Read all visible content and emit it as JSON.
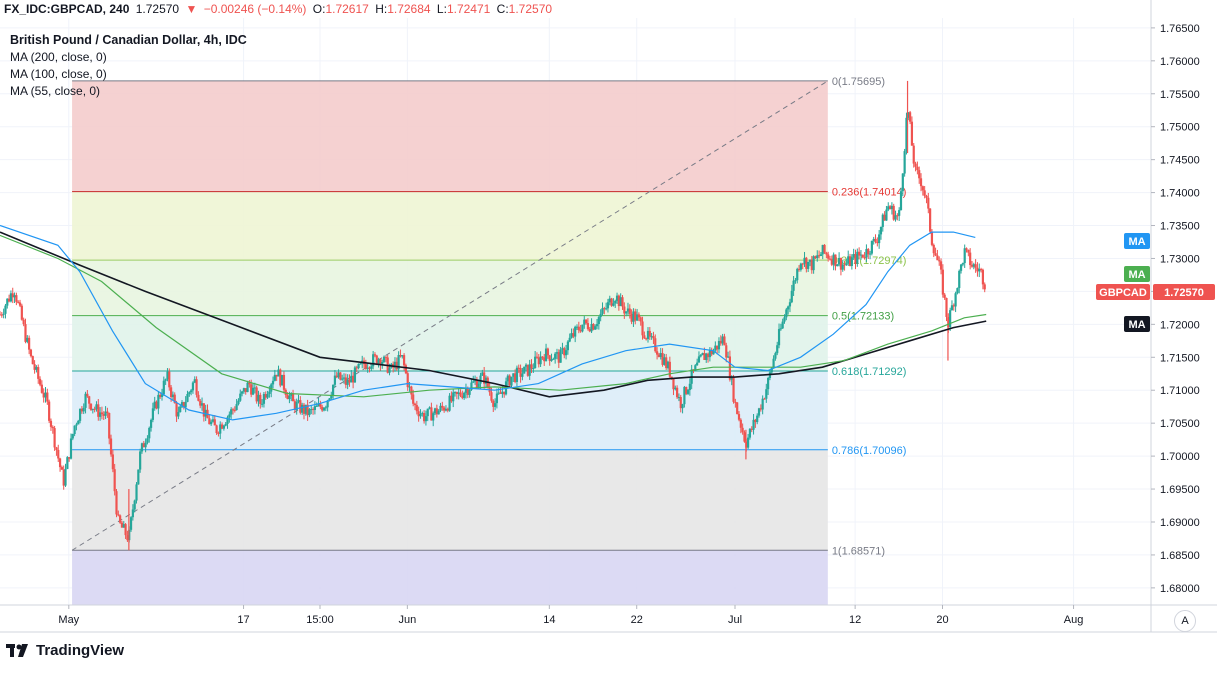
{
  "header": {
    "symbol": "FX_IDC:GBPCAD, 240",
    "last": "1.72570",
    "change": "−0.00246 (−0.14%)",
    "o_label": "O:",
    "o": "1.72617",
    "h_label": "H:",
    "h": "1.72684",
    "l_label": "L:",
    "l": "1.72471",
    "c_label": "C:",
    "c": "1.72570",
    "down_arrow_icon": "triangle-down",
    "color_down": "#ef5350"
  },
  "legend": {
    "title": "British Pound / Canadian Dollar, 4h, IDC",
    "ma200": "MA (200, close, 0)",
    "ma100": "MA (100, close, 0)",
    "ma55": "MA (55, close, 0)"
  },
  "price_tags": {
    "ma_blue": "MA",
    "ma_green": "MA",
    "symbol": "GBPCAD",
    "last": "1.72570",
    "ma_black": "MA"
  },
  "auto_button": "A",
  "branding": "TradingView",
  "chart_data": {
    "type": "candlestick",
    "symbol": "GBPCAD",
    "timeframe": "4h",
    "y_ticks": [
      "1.76500",
      "1.76000",
      "1.75500",
      "1.75000",
      "1.74500",
      "1.74000",
      "1.73500",
      "1.73000",
      "1.72500",
      "1.72000",
      "1.71500",
      "1.71000",
      "1.70500",
      "1.70000",
      "1.69500",
      "1.69000",
      "1.68500",
      "1.68000"
    ],
    "ylim": [
      1.6774,
      1.7665
    ],
    "x_ticks": [
      "May",
      "17",
      "15:00",
      "Jun",
      "14",
      "22",
      "Jul",
      "12",
      "20",
      "Aug"
    ],
    "x_tick_days": [
      1,
      17,
      24,
      32,
      45,
      53,
      62,
      73,
      81,
      93
    ],
    "xlim": [
      -5.3,
      100
    ],
    "fibonacci": {
      "levels": [
        {
          "ratio": "0",
          "label": "0(1.75695)",
          "price": 1.75695,
          "line_color": "#787b86",
          "fill": "#f4cccc"
        },
        {
          "ratio": "0.236",
          "label": "0.236(1.74014)",
          "price": 1.74014,
          "line_color": "#c62828",
          "fill": "#eef5d4"
        },
        {
          "ratio": "0.382",
          "label": "0.382(1.72974)",
          "price": 1.72974,
          "line_color": "#9ccc65",
          "fill": "#e8f5e0"
        },
        {
          "ratio": "0.5",
          "label": "0.5(1.72133)",
          "price": 1.72133,
          "line_color": "#4caf50",
          "fill": "#e0f3ea"
        },
        {
          "ratio": "0.618",
          "label": "0.618(1.71292)",
          "price": 1.71292,
          "line_color": "#26a69a",
          "fill": "#dcecf8"
        },
        {
          "ratio": "0.786",
          "label": "0.786(1.70096)",
          "price": 1.70096,
          "line_color": "#2196f3",
          "fill": "#e6e6e6"
        },
        {
          "ratio": "1",
          "label": "1(1.68571)",
          "price": 1.68571,
          "line_color": "#787b86",
          "fill": "#d8d6f3"
        }
      ],
      "label_colors": {
        "0": "#787b86",
        "0.236": "#e53935",
        "0.382": "#8bc34a",
        "0.5": "#43a047",
        "0.618": "#26a69a",
        "0.786": "#2196f3",
        "1": "#787b86"
      },
      "start_day": 1.3,
      "end_day": 70.5,
      "trend_line": [
        [
          1.3,
          1.68571
        ],
        [
          70.5,
          1.75695
        ]
      ]
    },
    "series": [
      {
        "name": "MA (200, close, 0)",
        "color": "#131722",
        "points": [
          [
            -5.3,
            1.734
          ],
          [
            2,
            1.729
          ],
          [
            8,
            1.725
          ],
          [
            16,
            1.72
          ],
          [
            24,
            1.715
          ],
          [
            29,
            1.714
          ],
          [
            34,
            1.713
          ],
          [
            40,
            1.711
          ],
          [
            45,
            1.709
          ],
          [
            50,
            1.71
          ],
          [
            54,
            1.7115
          ],
          [
            58,
            1.712
          ],
          [
            62,
            1.712
          ],
          [
            66,
            1.7125
          ],
          [
            70,
            1.7135
          ],
          [
            74,
            1.7155
          ],
          [
            78,
            1.7175
          ],
          [
            82,
            1.7195
          ],
          [
            85,
            1.7205
          ]
        ]
      },
      {
        "name": "MA (100, close, 0)",
        "color": "#4caf50",
        "points": [
          [
            -5.3,
            1.7335
          ],
          [
            0,
            1.73
          ],
          [
            4,
            1.7265
          ],
          [
            9,
            1.7195
          ],
          [
            15,
            1.7125
          ],
          [
            21,
            1.7095
          ],
          [
            28,
            1.709
          ],
          [
            34,
            1.71
          ],
          [
            40,
            1.7105
          ],
          [
            46,
            1.71
          ],
          [
            52,
            1.711
          ],
          [
            56,
            1.7125
          ],
          [
            60,
            1.7135
          ],
          [
            64,
            1.7135
          ],
          [
            68,
            1.7135
          ],
          [
            72,
            1.7145
          ],
          [
            76,
            1.717
          ],
          [
            80,
            1.719
          ],
          [
            83,
            1.721
          ],
          [
            85,
            1.7215
          ]
        ]
      },
      {
        "name": "MA (55, close, 0)",
        "color": "#2196f3",
        "points": [
          [
            -5.3,
            1.735
          ],
          [
            0,
            1.732
          ],
          [
            2,
            1.728
          ],
          [
            5,
            1.719
          ],
          [
            8,
            1.711
          ],
          [
            12,
            1.707
          ],
          [
            16,
            1.7055
          ],
          [
            20,
            1.7065
          ],
          [
            24,
            1.708
          ],
          [
            28,
            1.71
          ],
          [
            32,
            1.711
          ],
          [
            36,
            1.7105
          ],
          [
            40,
            1.71
          ],
          [
            44,
            1.711
          ],
          [
            48,
            1.714
          ],
          [
            52,
            1.716
          ],
          [
            56,
            1.717
          ],
          [
            60,
            1.716
          ],
          [
            62,
            1.7135
          ],
          [
            65,
            1.713
          ],
          [
            68,
            1.715
          ],
          [
            71,
            1.7185
          ],
          [
            74,
            1.723
          ],
          [
            76,
            1.728
          ],
          [
            78,
            1.732
          ],
          [
            80,
            1.734
          ],
          [
            82,
            1.734
          ],
          [
            84,
            1.7332
          ]
        ]
      }
    ],
    "candles_path": [
      [
        -5.3,
        1.7215
      ],
      [
        -4.0,
        1.7255
      ],
      [
        -2.5,
        1.715
      ],
      [
        -1.0,
        1.708
      ],
      [
        0.5,
        1.696
      ],
      [
        1.5,
        1.7045
      ],
      [
        2.5,
        1.709
      ],
      [
        3.5,
        1.707
      ],
      [
        4.5,
        1.706
      ],
      [
        5.5,
        1.69
      ],
      [
        6.5,
        1.6875
      ],
      [
        7.5,
        1.7
      ],
      [
        9.0,
        1.708
      ],
      [
        10.0,
        1.712
      ],
      [
        11.0,
        1.706
      ],
      [
        12.5,
        1.7115
      ],
      [
        13.5,
        1.706
      ],
      [
        14.5,
        1.704
      ],
      [
        16.0,
        1.707
      ],
      [
        17.5,
        1.711
      ],
      [
        18.5,
        1.708
      ],
      [
        20.0,
        1.713
      ],
      [
        21.5,
        1.708
      ],
      [
        23.0,
        1.7065
      ],
      [
        24.5,
        1.708
      ],
      [
        25.5,
        1.712
      ],
      [
        26.5,
        1.711
      ],
      [
        28.0,
        1.714
      ],
      [
        29.5,
        1.715
      ],
      [
        30.5,
        1.713
      ],
      [
        31.5,
        1.715
      ],
      [
        32.5,
        1.708
      ],
      [
        33.5,
        1.706
      ],
      [
        35.0,
        1.707
      ],
      [
        36.5,
        1.709
      ],
      [
        38.0,
        1.711
      ],
      [
        39.0,
        1.712
      ],
      [
        40.0,
        1.708
      ],
      [
        41.5,
        1.712
      ],
      [
        43.0,
        1.713
      ],
      [
        44.5,
        1.7155
      ],
      [
        46.0,
        1.715
      ],
      [
        47.0,
        1.718
      ],
      [
        48.0,
        1.72
      ],
      [
        49.0,
        1.72
      ],
      [
        50.0,
        1.722
      ],
      [
        51.0,
        1.7245
      ],
      [
        52.0,
        1.722
      ],
      [
        53.0,
        1.721
      ],
      [
        54.0,
        1.718
      ],
      [
        55.0,
        1.716
      ],
      [
        56.0,
        1.713
      ],
      [
        57.0,
        1.708
      ],
      [
        58.0,
        1.712
      ],
      [
        59.0,
        1.715
      ],
      [
        60.0,
        1.716
      ],
      [
        61.0,
        1.718
      ],
      [
        62.0,
        1.708
      ],
      [
        63.0,
        1.702
      ],
      [
        64.0,
        1.706
      ],
      [
        65.0,
        1.711
      ],
      [
        66.0,
        1.718
      ],
      [
        67.0,
        1.724
      ],
      [
        68.0,
        1.73
      ],
      [
        69.0,
        1.729
      ],
      [
        70.0,
        1.731
      ],
      [
        71.0,
        1.73
      ],
      [
        72.0,
        1.729
      ],
      [
        73.0,
        1.73
      ],
      [
        74.0,
        1.731
      ],
      [
        75.0,
        1.733
      ],
      [
        76.0,
        1.738
      ],
      [
        77.0,
        1.736
      ],
      [
        77.8,
        1.753
      ],
      [
        78.5,
        1.743
      ],
      [
        79.0,
        1.742
      ],
      [
        79.5,
        1.739
      ],
      [
        80.0,
        1.733
      ],
      [
        80.8,
        1.728
      ],
      [
        81.5,
        1.72
      ],
      [
        82.2,
        1.725
      ],
      [
        83.0,
        1.731
      ],
      [
        83.7,
        1.729
      ],
      [
        84.5,
        1.728
      ],
      [
        85.0,
        1.7257
      ]
    ],
    "candles_spikes": [
      {
        "day": 77.8,
        "high": 1.75695,
        "low": 1.746
      },
      {
        "day": 6.5,
        "high": 1.695,
        "low": 1.68571
      },
      {
        "day": 81.5,
        "high": 1.721,
        "low": 1.7145
      },
      {
        "day": 63.0,
        "high": 1.704,
        "low": 1.6995
      }
    ],
    "color_up": "#26a69a",
    "color_down": "#ef5350"
  }
}
